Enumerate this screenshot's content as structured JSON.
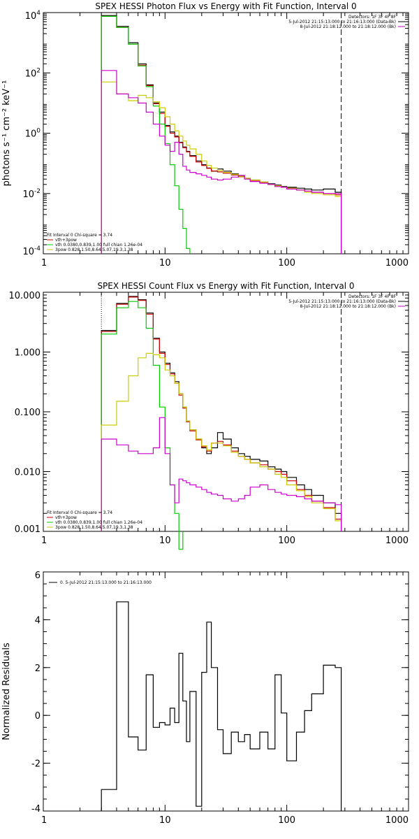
{
  "chart_data": [
    {
      "type": "line",
      "title": "SPEX HESSI Photon Flux vs Energy with Fit Function, Interval 0",
      "ylabel": "photons s⁻¹ cm⁻² keV⁻¹",
      "xlabel": "",
      "xlim": [
        1,
        1000
      ],
      "ylim": [
        0.0001,
        10000
      ],
      "xscale": "log",
      "yscale": "log",
      "xticks": [
        {
          "v": 1,
          "t": "1"
        },
        {
          "v": 10,
          "t": "10"
        },
        {
          "v": 100,
          "t": "100"
        },
        {
          "v": 1000,
          "t": "1000"
        }
      ],
      "yticks": [
        {
          "v": 10000,
          "b": "10",
          "e": "4"
        },
        {
          "v": 100,
          "b": "10",
          "e": "2"
        },
        {
          "v": 1,
          "b": "10",
          "e": "0"
        },
        {
          "v": 0.01,
          "b": "10",
          "e": "-2"
        },
        {
          "v": 0.0001,
          "b": "10",
          "e": "-4"
        }
      ],
      "vlines": [
        {
          "x": 3.0,
          "style": "dotted",
          "color": "#000000"
        },
        {
          "x": 280,
          "style": "dashed",
          "color": "#000000"
        }
      ],
      "legend_topright": [
        {
          "text": "Detectors: 1F 3F 4F 8F",
          "color": ""
        },
        {
          "text": "5-Jul-2012 21:15:13.000 to 21:16:13.000 (Data-Bk)",
          "color": "#000000"
        },
        {
          "text": "8-Jul-2012 21:18:12.000 to 21:18:12.000 (Bk)",
          "color": "#cc00cc"
        }
      ],
      "legend_bottomleft": [
        {
          "text": "Fit Interval 0   Chi-square = 3.74",
          "color": ""
        },
        {
          "text": "vth+3pow",
          "color": "#cc0000"
        },
        {
          "text": "vth 0.0380,0.839,1.00  full chian 1.26e-04",
          "color": "#00cc00"
        },
        {
          "text": "3pow 0.828,1.50,8.64,5.07,19.3,1.38",
          "color": "#cccc00"
        }
      ],
      "series": [
        {
          "role": "data",
          "color": "#000000",
          "edges": [
            3.0,
            4.0,
            5.0,
            6.0,
            7.0,
            8.0,
            9.0,
            10.0,
            11.0,
            12.0,
            13.0,
            14.0,
            15.0,
            16.0,
            18.0,
            20.0,
            22.0,
            24.0,
            27.0,
            30.0,
            35.0,
            40.0,
            45.0,
            50.0,
            60.0,
            70.0,
            80.0,
            90.0,
            100.0,
            120.0,
            140.0,
            160.0,
            200.0,
            250.0,
            280.0
          ],
          "values": [
            8000,
            3500,
            1000,
            200,
            40,
            10,
            5,
            1.8,
            1.1,
            0.8,
            0.5,
            0.35,
            0.25,
            0.18,
            0.12,
            0.09,
            0.07,
            0.055,
            0.065,
            0.055,
            0.045,
            0.038,
            0.032,
            0.028,
            0.024,
            0.021,
            0.019,
            0.017,
            0.016,
            0.015,
            0.014,
            0.013,
            0.014,
            0.011
          ]
        },
        {
          "role": "total fit",
          "color": "#cc0000",
          "edges": [
            3.0,
            4.0,
            5.0,
            6.0,
            7.0,
            8.0,
            9.0,
            10.0,
            11.0,
            12.0,
            13.0,
            14.0,
            15.0,
            16.0,
            18.0,
            20.0,
            22.0,
            24.0,
            27.0,
            30.0,
            35.0,
            40.0,
            45.0,
            50.0,
            60.0,
            70.0,
            80.0,
            90.0,
            100.0,
            120.0,
            140.0,
            160.0,
            200.0,
            250.0,
            280.0
          ],
          "values": [
            7500,
            3200,
            900,
            180,
            38,
            9.5,
            4.5,
            1.7,
            1.0,
            0.75,
            0.48,
            0.33,
            0.24,
            0.17,
            0.11,
            0.085,
            0.068,
            0.056,
            0.052,
            0.047,
            0.041,
            0.036,
            0.031,
            0.027,
            0.023,
            0.02,
            0.018,
            0.016,
            0.015,
            0.013,
            0.012,
            0.011,
            0.01,
            0.009
          ]
        },
        {
          "role": "thermal component",
          "color": "#00cc00",
          "edges": [
            3.0,
            4.0,
            5.0,
            6.0,
            7.0,
            8.0,
            9.0,
            10.0,
            11.0,
            12.0,
            13.0,
            14.0,
            15.0,
            16.0
          ],
          "values": [
            7500,
            3200,
            900,
            170,
            35,
            8,
            2,
            0.45,
            0.09,
            0.018,
            0.003,
            0.0007,
            0.00015
          ]
        },
        {
          "role": "power-law component",
          "color": "#cccc00",
          "edges": [
            3.0,
            4.0,
            5.0,
            6.0,
            7.0,
            8.0,
            9.0,
            10.0,
            11.0,
            12.0,
            13.0,
            14.0,
            15.0,
            16.0,
            18.0,
            20.0,
            22.0,
            24.0,
            27.0,
            30.0,
            35.0,
            40.0,
            45.0,
            50.0,
            60.0,
            70.0,
            80.0,
            90.0,
            100.0,
            120.0,
            140.0,
            160.0,
            200.0,
            250.0,
            280.0
          ],
          "values": [
            50,
            20,
            12,
            18,
            15,
            11,
            7,
            3.5,
            2,
            1.2,
            0.8,
            0.55,
            0.4,
            0.3,
            0.2,
            0.12,
            0.085,
            0.07,
            0.058,
            0.05,
            0.043,
            0.037,
            0.032,
            0.028,
            0.024,
            0.02,
            0.018,
            0.016,
            0.015,
            0.013,
            0.011,
            0.01,
            0.009,
            0.008
          ]
        },
        {
          "role": "background",
          "color": "#cc00cc",
          "edges": [
            3.0,
            4.0,
            5.0,
            6.0,
            7.0,
            8.0,
            9.0,
            10.0,
            11.0,
            12.0,
            13.0,
            14.0,
            15.0,
            16.0,
            18.0,
            20.0,
            22.0,
            24.0,
            27.0,
            30.0,
            35.0,
            40.0,
            45.0,
            50.0,
            60.0,
            70.0,
            80.0,
            90.0,
            100.0,
            120.0,
            140.0,
            160.0,
            200.0,
            250.0,
            280.0
          ],
          "values": [
            120,
            20,
            15,
            10,
            5,
            2,
            0.8,
            0.4,
            0.25,
            0.5,
            0.2,
            0.08,
            0.06,
            0.05,
            0.045,
            0.04,
            0.035,
            0.03,
            0.028,
            0.03,
            0.035,
            0.04,
            0.03,
            0.025,
            0.022,
            0.02,
            0.017,
            0.016,
            0.014,
            0.013,
            0.012,
            0.011,
            0.01,
            0.01
          ]
        }
      ]
    },
    {
      "type": "line",
      "title": "SPEX HESSI Count Flux vs Energy with Fit Function, Interval 0",
      "ylabel": "",
      "xlabel": "",
      "xlim": [
        1,
        1000
      ],
      "ylim": [
        0.001,
        10
      ],
      "xscale": "log",
      "yscale": "log",
      "xticks": [
        {
          "v": 1,
          "t": "1"
        },
        {
          "v": 10,
          "t": "10"
        },
        {
          "v": 100,
          "t": "100"
        },
        {
          "v": 1000,
          "t": "1000"
        }
      ],
      "yticks": [
        {
          "v": 10,
          "t": "10.000"
        },
        {
          "v": 1,
          "t": "1.000"
        },
        {
          "v": 0.1,
          "t": "0.100"
        },
        {
          "v": 0.01,
          "t": "0.010"
        },
        {
          "v": 0.001,
          "t": "0.001"
        }
      ],
      "vlines": [
        {
          "x": 3.0,
          "style": "dotted",
          "color": "#000000"
        },
        {
          "x": 280,
          "style": "dashed",
          "color": "#000000"
        }
      ],
      "legend_topright": [
        {
          "text": "Detectors: 1F 3F 4F 8F",
          "color": ""
        },
        {
          "text": "5-Jul-2012 21:15:13.000 to 21:16:13.000 (Data-Bk)",
          "color": "#000000"
        },
        {
          "text": "8-Jul-2012 21:18:12.000 to 21:18:12.000 (Bk)",
          "color": "#cc00cc"
        }
      ],
      "legend_bottomleft": [
        {
          "text": "Fit Interval 0   Chi-square = 3.74",
          "color": ""
        },
        {
          "text": "vth+3pow",
          "color": "#cc0000"
        },
        {
          "text": "vth 0.0380,0.839,1.00  full chian 1.26e-04",
          "color": "#00cc00"
        },
        {
          "text": "3pow 0.828,1.50,8.64,5.07,19.3,1.38",
          "color": "#cccc00"
        }
      ],
      "series": [
        {
          "role": "data",
          "color": "#000000",
          "edges": [
            3.0,
            4.0,
            5.0,
            6.0,
            7.0,
            8.0,
            9.0,
            10.0,
            11.0,
            12.0,
            13.0,
            14.0,
            15.0,
            16.0,
            18.0,
            20.0,
            22.0,
            24.0,
            27.0,
            30.0,
            35.0,
            40.0,
            45.0,
            50.0,
            60.0,
            70.0,
            80.0,
            90.0,
            100.0,
            120.0,
            140.0,
            160.0,
            200.0,
            250.0,
            280.0
          ],
          "values": [
            2.3,
            6.5,
            8.5,
            7.5,
            4.5,
            1.7,
            1.0,
            0.65,
            0.45,
            0.32,
            0.2,
            0.12,
            0.07,
            0.05,
            0.035,
            0.025,
            0.02,
            0.025,
            0.045,
            0.035,
            0.025,
            0.02,
            0.018,
            0.016,
            0.015,
            0.012,
            0.011,
            0.01,
            0.008,
            0.006,
            0.005,
            0.004,
            0.003,
            0.002
          ]
        },
        {
          "role": "total fit",
          "color": "#cc0000",
          "edges": [
            3.0,
            4.0,
            5.0,
            6.0,
            7.0,
            8.0,
            9.0,
            10.0,
            11.0,
            12.0,
            13.0,
            14.0,
            15.0,
            16.0,
            18.0,
            20.0,
            22.0,
            24.0,
            27.0,
            30.0,
            35.0,
            40.0,
            45.0,
            50.0,
            60.0,
            70.0,
            80.0,
            90.0,
            100.0,
            120.0,
            140.0,
            160.0,
            200.0,
            250.0,
            280.0
          ],
          "values": [
            2.2,
            6.3,
            8.3,
            7.3,
            4.3,
            1.65,
            0.95,
            0.62,
            0.43,
            0.3,
            0.19,
            0.115,
            0.068,
            0.048,
            0.034,
            0.026,
            0.022,
            0.03,
            0.032,
            0.028,
            0.022,
            0.018,
            0.016,
            0.014,
            0.013,
            0.011,
            0.01,
            0.009,
            0.007,
            0.005,
            0.004,
            0.0032,
            0.0025,
            0.0016
          ]
        },
        {
          "role": "thermal component",
          "color": "#00cc00",
          "edges": [
            3.0,
            4.0,
            5.0,
            6.0,
            7.0,
            8.0,
            9.0,
            10.0,
            11.0,
            12.0,
            13.0,
            14.0
          ],
          "values": [
            2.0,
            5.5,
            7.0,
            5.5,
            2.5,
            0.6,
            0.12,
            0.025,
            0.006,
            0.002,
            0.0005
          ]
        },
        {
          "role": "power-law component",
          "color": "#cccc00",
          "edges": [
            3.0,
            4.0,
            5.0,
            6.0,
            7.0,
            8.0,
            9.0,
            10.0,
            11.0,
            12.0,
            13.0,
            14.0,
            15.0,
            16.0,
            18.0,
            20.0,
            22.0,
            24.0,
            27.0,
            30.0,
            35.0,
            40.0,
            45.0,
            50.0,
            60.0,
            70.0,
            80.0,
            90.0,
            100.0,
            120.0,
            140.0,
            160.0,
            200.0,
            250.0,
            280.0
          ],
          "values": [
            0.06,
            0.15,
            0.4,
            0.8,
            0.95,
            0.9,
            0.8,
            0.5,
            0.4,
            0.3,
            0.2,
            0.12,
            0.07,
            0.05,
            0.035,
            0.027,
            0.023,
            0.03,
            0.03,
            0.027,
            0.021,
            0.018,
            0.016,
            0.014,
            0.012,
            0.011,
            0.009,
            0.008,
            0.006,
            0.0048,
            0.0038,
            0.003,
            0.0024,
            0.0015
          ]
        },
        {
          "role": "background",
          "color": "#cc00cc",
          "edges": [
            3.0,
            4.0,
            5.0,
            6.0,
            7.0,
            8.0,
            9.0,
            10.0,
            11.0,
            12.0,
            13.0,
            14.0,
            15.0,
            16.0,
            18.0,
            20.0,
            22.0,
            24.0,
            27.0,
            30.0,
            35.0,
            40.0,
            45.0,
            50.0,
            60.0,
            70.0,
            80.0,
            90.0,
            100.0,
            120.0,
            140.0,
            160.0,
            200.0,
            250.0,
            280.0
          ],
          "values": [
            0.035,
            0.028,
            0.022,
            0.02,
            0.02,
            0.025,
            0.08,
            0.02,
            0.006,
            0.003,
            0.0075,
            0.007,
            0.0065,
            0.006,
            0.0055,
            0.005,
            0.0045,
            0.0042,
            0.004,
            0.0035,
            0.0032,
            0.0035,
            0.004,
            0.0055,
            0.006,
            0.005,
            0.0045,
            0.0042,
            0.004,
            0.0038,
            0.0035,
            0.0032,
            0.003,
            0.0028
          ]
        }
      ]
    },
    {
      "type": "line",
      "title": "",
      "ylabel": "Normalized Residuals",
      "xlabel": "",
      "xlim": [
        1,
        1000
      ],
      "ylim": [
        -4,
        6
      ],
      "xscale": "log",
      "yscale": "linear",
      "xticks": [
        {
          "v": 1,
          "t": "1"
        },
        {
          "v": 10,
          "t": "10"
        },
        {
          "v": 100,
          "t": "100"
        },
        {
          "v": 1000,
          "t": "1000"
        }
      ],
      "yticks": [
        {
          "v": 6,
          "t": "6"
        },
        {
          "v": 4,
          "t": "4"
        },
        {
          "v": 2,
          "t": "2"
        },
        {
          "v": 0,
          "t": "0"
        },
        {
          "v": -2,
          "t": "-2"
        },
        {
          "v": -4,
          "t": "-4"
        }
      ],
      "vlines": [],
      "legend_topleft": [
        {
          "text": "0. 5-Jul-2012 21:15:13.000 to 21:16:13.000",
          "color": "#000000"
        }
      ],
      "series": [
        {
          "role": "residuals",
          "color": "#000000",
          "edges": [
            3.0,
            4.0,
            5.0,
            6.0,
            7.0,
            8.0,
            9.0,
            10.0,
            11.0,
            12.0,
            13.0,
            14.0,
            15.0,
            16.0,
            18.0,
            20.0,
            22.0,
            24.0,
            27.0,
            30.0,
            35.0,
            40.0,
            45.0,
            50.0,
            60.0,
            70.0,
            80.0,
            90.0,
            100.0,
            120.0,
            140.0,
            160.0,
            200.0,
            250.0,
            280.0
          ],
          "values": [
            -3.1,
            4.75,
            -0.9,
            -1.45,
            1.7,
            -0.5,
            -0.3,
            -0.4,
            0.3,
            -0.3,
            2.6,
            0.6,
            -1.1,
            1.0,
            -3.8,
            1.8,
            3.9,
            2.0,
            -0.6,
            -1.6,
            -0.7,
            -1.1,
            -0.8,
            -1.4,
            -0.7,
            -1.4,
            1.7,
            0.1,
            -1.9,
            -0.7,
            0.2,
            0.9,
            2.1,
            2.0
          ]
        }
      ]
    }
  ]
}
